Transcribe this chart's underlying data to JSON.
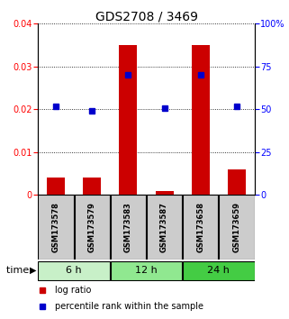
{
  "title": "GDS2708 / 3469",
  "samples": [
    "GSM173578",
    "GSM173579",
    "GSM173583",
    "GSM173587",
    "GSM173658",
    "GSM173659"
  ],
  "groups": [
    {
      "label": "6 h",
      "indices": [
        0,
        1
      ],
      "color": "#c8f0c8"
    },
    {
      "label": "12 h",
      "indices": [
        2,
        3
      ],
      "color": "#90e890"
    },
    {
      "label": "24 h",
      "indices": [
        4,
        5
      ],
      "color": "#44cc44"
    }
  ],
  "log_ratio": [
    0.004,
    0.004,
    0.035,
    0.001,
    0.035,
    0.006
  ],
  "percentile_rank": [
    52,
    49,
    70,
    51,
    70,
    52
  ],
  "ylim_left": [
    0,
    0.04
  ],
  "ylim_right": [
    0,
    100
  ],
  "yticks_left": [
    0,
    0.01,
    0.02,
    0.03,
    0.04
  ],
  "yticks_right": [
    0,
    25,
    50,
    75,
    100
  ],
  "bar_color": "#cc0000",
  "dot_color": "#0000cc",
  "sample_label_bg": "#cccccc",
  "plot_bg": "#ffffff",
  "title_fontsize": 10,
  "tick_fontsize": 7,
  "sample_fontsize": 6,
  "group_fontsize": 8,
  "legend_fontsize": 7
}
